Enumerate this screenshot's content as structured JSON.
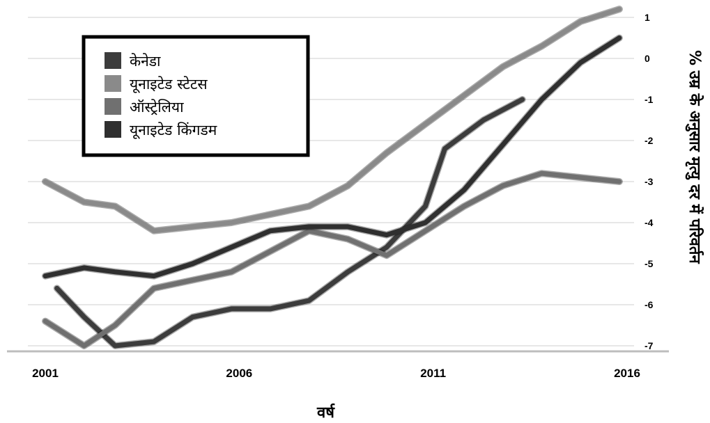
{
  "chart_data": {
    "type": "line",
    "xlabel": "वर्ष",
    "ylabel": "% उम्र के अनुसार मृत्यु दर में परिवर्तन",
    "x_ticks": [
      "2001",
      "2006",
      "2011",
      "2016"
    ],
    "y_ticks": [
      "1",
      "0",
      "-1",
      "-2",
      "-3",
      "-4",
      "-5",
      "-6",
      "-7"
    ],
    "xlim": [
      2001,
      2016
    ],
    "ylim": [
      -7,
      1
    ],
    "grid": true,
    "legend_position": "top-left",
    "series": [
      {
        "name": "केनेडा",
        "color": "#3c3c3c",
        "points": [
          [
            2001.3,
            -5.6
          ],
          [
            2002,
            -6.3
          ],
          [
            2002.8,
            -7.0
          ],
          [
            2003.8,
            -6.9
          ],
          [
            2004.8,
            -6.3
          ],
          [
            2005.8,
            -6.1
          ],
          [
            2006.8,
            -6.1
          ],
          [
            2007.8,
            -5.9
          ],
          [
            2008.8,
            -5.2
          ],
          [
            2009.8,
            -4.6
          ],
          [
            2010.8,
            -3.6
          ],
          [
            2011.3,
            -2.2
          ],
          [
            2012.3,
            -1.5
          ],
          [
            2013.3,
            -1.0
          ]
        ]
      },
      {
        "name": "यूनाइटेड स्टेटस",
        "color": "#8a8a8a",
        "points": [
          [
            2001,
            -3.0
          ],
          [
            2002,
            -3.5
          ],
          [
            2002.8,
            -3.6
          ],
          [
            2003.8,
            -4.2
          ],
          [
            2004.8,
            -4.1
          ],
          [
            2005.8,
            -4.0
          ],
          [
            2006.8,
            -3.8
          ],
          [
            2007.8,
            -3.6
          ],
          [
            2008.8,
            -3.1
          ],
          [
            2009.8,
            -2.3
          ],
          [
            2010.8,
            -1.6
          ],
          [
            2011.8,
            -0.9
          ],
          [
            2012.8,
            -0.2
          ],
          [
            2013.8,
            0.3
          ],
          [
            2014.8,
            0.9
          ],
          [
            2015.8,
            1.2
          ]
        ]
      },
      {
        "name": "ऑस्ट्रेलिया",
        "color": "#707070",
        "points": [
          [
            2001,
            -6.4
          ],
          [
            2002,
            -7.0
          ],
          [
            2002.8,
            -6.5
          ],
          [
            2003.8,
            -5.6
          ],
          [
            2004.8,
            -5.4
          ],
          [
            2005.8,
            -5.2
          ],
          [
            2006.8,
            -4.7
          ],
          [
            2007.8,
            -4.2
          ],
          [
            2008.8,
            -4.4
          ],
          [
            2009.8,
            -4.8
          ],
          [
            2010.8,
            -4.2
          ],
          [
            2011.8,
            -3.6
          ],
          [
            2012.8,
            -3.1
          ],
          [
            2013.8,
            -2.8
          ],
          [
            2014.8,
            -2.9
          ],
          [
            2015.8,
            -3.0
          ]
        ]
      },
      {
        "name": "यूनाइटेड किंगडम",
        "color": "#2f2f2f",
        "points": [
          [
            2001,
            -5.3
          ],
          [
            2002,
            -5.1
          ],
          [
            2002.8,
            -5.2
          ],
          [
            2003.8,
            -5.3
          ],
          [
            2004.8,
            -5.0
          ],
          [
            2005.8,
            -4.6
          ],
          [
            2006.8,
            -4.2
          ],
          [
            2007.8,
            -4.1
          ],
          [
            2008.8,
            -4.1
          ],
          [
            2009.8,
            -4.3
          ],
          [
            2010.8,
            -4.0
          ],
          [
            2011.8,
            -3.2
          ],
          [
            2012.8,
            -2.1
          ],
          [
            2013.8,
            -1.0
          ],
          [
            2014.8,
            -0.1
          ],
          [
            2015.8,
            0.5
          ]
        ]
      }
    ]
  }
}
